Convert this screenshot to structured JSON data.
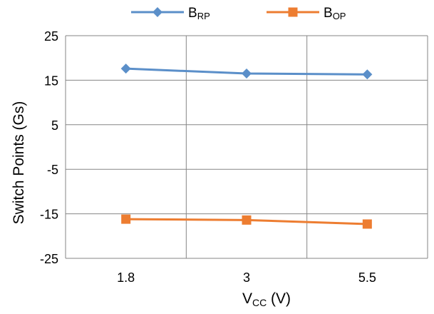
{
  "chart_data": {
    "type": "line",
    "x": [
      "1.8",
      "3",
      "5.5"
    ],
    "series": [
      {
        "name": "B",
        "name_sub": "RP",
        "values": [
          17.6,
          16.5,
          16.3
        ],
        "color": "#5B8FC9",
        "marker": "diamond"
      },
      {
        "name": "B",
        "name_sub": "OP",
        "values": [
          -16.2,
          -16.4,
          -17.3
        ],
        "color": "#ED7D31",
        "marker": "square"
      }
    ],
    "xlabel": "V",
    "xlabel_sub": "CC",
    "xlabel_unit": " (V)",
    "ylabel": "Switch Points (Gs)",
    "ylim": [
      -25,
      25
    ],
    "yticks": [
      "25",
      "15",
      "5",
      "-5",
      "-15",
      "-25"
    ],
    "grid": true,
    "legend": "top"
  }
}
